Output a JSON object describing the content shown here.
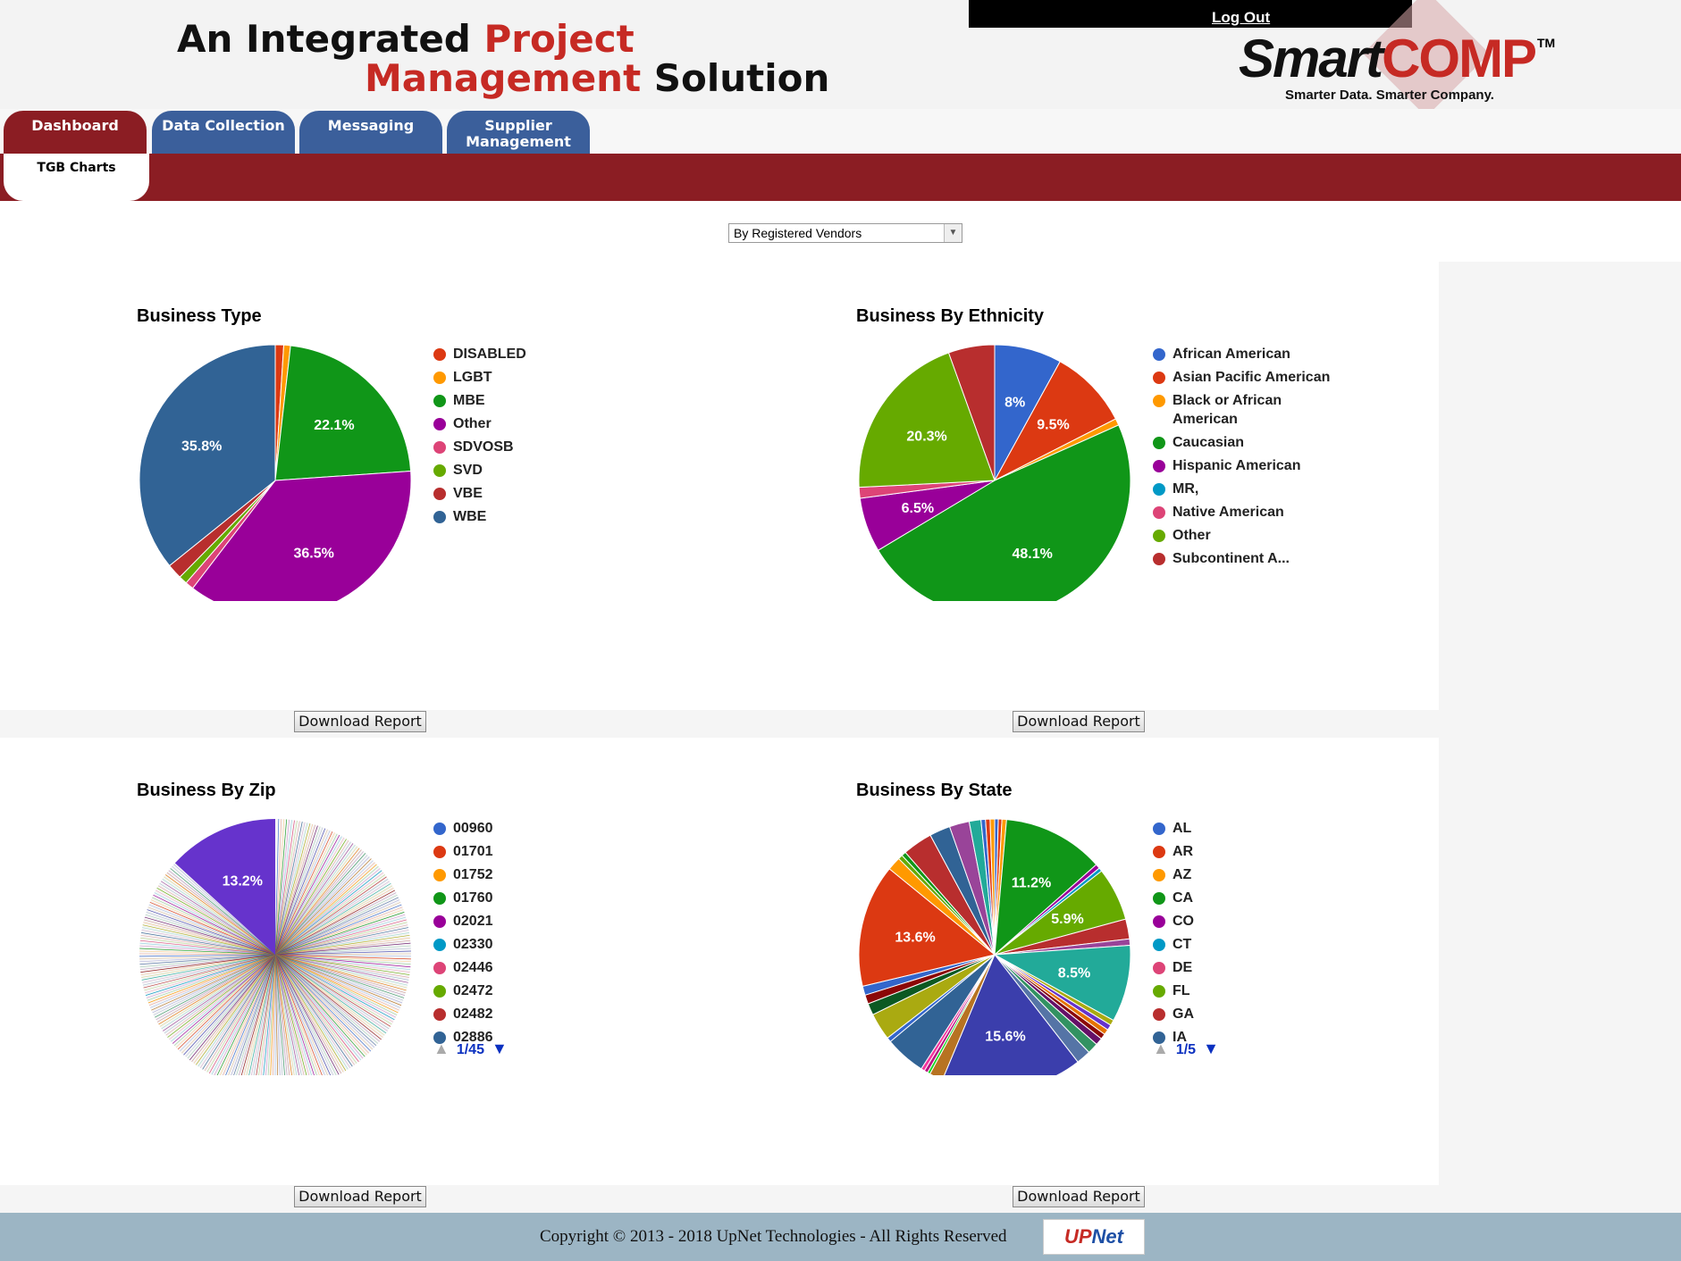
{
  "header": {
    "title_part1": "An Integrated ",
    "title_accent1": "Project",
    "title_accent2": "Management",
    "title_part2": " Solution",
    "logout": "Log Out",
    "logo_smart": "Smart",
    "logo_comp": "COMP",
    "logo_tm": "TM",
    "logo_tagline": "Smarter Data. Smarter Company."
  },
  "tabs": [
    {
      "label": "Dashboard",
      "active": true
    },
    {
      "label": "Data Collection",
      "active": false
    },
    {
      "label": "Messaging",
      "active": false
    },
    {
      "label": "Supplier Management",
      "active": false
    }
  ],
  "subtab": "TGB Charts",
  "filter": {
    "selected": "By Registered Vendors"
  },
  "download_label": "Download Report",
  "chart_data": [
    {
      "type": "pie",
      "title": "Business Type",
      "slices": [
        {
          "label": "DISABLED",
          "value": 1.0,
          "color": "#dc3912"
        },
        {
          "label": "LGBT",
          "value": 0.8,
          "color": "#ff9900"
        },
        {
          "label": "MBE",
          "value": 22.1,
          "color": "#109618"
        },
        {
          "label": "Other",
          "value": 36.5,
          "color": "#990099"
        },
        {
          "label": "SDVOSB",
          "value": 1.0,
          "color": "#dd4477"
        },
        {
          "label": "SVD",
          "value": 1.0,
          "color": "#66aa00"
        },
        {
          "label": "VBE",
          "value": 1.8,
          "color": "#b82e2e"
        },
        {
          "label": "WBE",
          "value": 35.8,
          "color": "#316395"
        }
      ],
      "data_labels": [
        "22.1%",
        "36.5%",
        "35.8%"
      ]
    },
    {
      "type": "pie",
      "title": "Business By Ethnicity",
      "slices": [
        {
          "label": "African American",
          "value": 8.0,
          "color": "#3366cc"
        },
        {
          "label": "Asian Pacific American",
          "value": 9.5,
          "color": "#dc3912"
        },
        {
          "label": "Black or African American",
          "value": 0.8,
          "color": "#ff9900"
        },
        {
          "label": "Caucasian",
          "value": 48.1,
          "color": "#109618"
        },
        {
          "label": "Hispanic American",
          "value": 6.5,
          "color": "#990099"
        },
        {
          "label": "MR,",
          "value": 0.0,
          "color": "#0099c6"
        },
        {
          "label": "Native American",
          "value": 1.3,
          "color": "#dd4477"
        },
        {
          "label": "Other",
          "value": 20.3,
          "color": "#66aa00"
        },
        {
          "label": "Subcontinent A...",
          "value": 5.5,
          "color": "#b82e2e"
        }
      ],
      "data_labels": [
        "8%",
        "9.5%",
        "48.1%",
        "6.5%",
        "20.3%"
      ]
    },
    {
      "type": "pie",
      "title": "Business By Zip",
      "largest_slice": {
        "label": "",
        "value": 13.2,
        "color": "#6633cc"
      },
      "legend": [
        {
          "label": "00960",
          "color": "#3366cc"
        },
        {
          "label": "01701",
          "color": "#dc3912"
        },
        {
          "label": "01752",
          "color": "#ff9900"
        },
        {
          "label": "01760",
          "color": "#109618"
        },
        {
          "label": "02021",
          "color": "#990099"
        },
        {
          "label": "02330",
          "color": "#0099c6"
        },
        {
          "label": "02446",
          "color": "#dd4477"
        },
        {
          "label": "02472",
          "color": "#66aa00"
        },
        {
          "label": "02482",
          "color": "#b82e2e"
        },
        {
          "label": "02886",
          "color": "#316395"
        }
      ],
      "data_labels": [
        "13.2%"
      ],
      "pager": "1/45"
    },
    {
      "type": "pie",
      "title": "Business By State",
      "slices": [
        {
          "label": "AL",
          "value": 0.4,
          "color": "#3366cc"
        },
        {
          "label": "AR",
          "value": 0.4,
          "color": "#dc3912"
        },
        {
          "label": "AZ",
          "value": 0.5,
          "color": "#ff9900"
        },
        {
          "label": "CA",
          "value": 11.2,
          "color": "#109618"
        },
        {
          "label": "CO",
          "value": 0.5,
          "color": "#990099"
        },
        {
          "label": "CT",
          "value": 0.4,
          "color": "#0099c6"
        },
        {
          "label": "FL",
          "value": 5.9,
          "color": "#66aa00"
        },
        {
          "label": "GA",
          "value": 2.2,
          "color": "#b82e2e"
        },
        {
          "label": "",
          "value": 0.7,
          "color": "#994499"
        },
        {
          "label": "",
          "value": 8.5,
          "color": "#22aa99"
        },
        {
          "label": "",
          "value": 0.6,
          "color": "#aaaa11"
        },
        {
          "label": "",
          "value": 0.6,
          "color": "#6633cc"
        },
        {
          "label": "",
          "value": 0.6,
          "color": "#e67300"
        },
        {
          "label": "",
          "value": 0.6,
          "color": "#8b0707"
        },
        {
          "label": "",
          "value": 0.8,
          "color": "#651067"
        },
        {
          "label": "",
          "value": 1.2,
          "color": "#329262"
        },
        {
          "label": "",
          "value": 1.6,
          "color": "#5574a6"
        },
        {
          "label": "",
          "value": 15.6,
          "color": "#3b3eac"
        },
        {
          "label": "",
          "value": 1.5,
          "color": "#b77322"
        },
        {
          "label": "",
          "value": 0.3,
          "color": "#16d620"
        },
        {
          "label": "",
          "value": 0.4,
          "color": "#b91383"
        },
        {
          "label": "",
          "value": 0.4,
          "color": "#f4359e"
        },
        {
          "label": "",
          "value": 4.5,
          "color": "#316395"
        },
        {
          "label": "",
          "value": 0.5,
          "color": "#3366cc"
        },
        {
          "label": "",
          "value": 3.0,
          "color": "#aaaa11"
        },
        {
          "label": "",
          "value": 1.3,
          "color": "#0c5922"
        },
        {
          "label": "",
          "value": 1.0,
          "color": "#8b0707"
        },
        {
          "label": "",
          "value": 1.0,
          "color": "#3366cc"
        },
        {
          "label": "",
          "value": 13.6,
          "color": "#dc3912"
        },
        {
          "label": "",
          "value": 1.5,
          "color": "#ff9900"
        },
        {
          "label": "",
          "value": 0.5,
          "color": "#66aa00"
        },
        {
          "label": "",
          "value": 0.5,
          "color": "#109618"
        },
        {
          "label": "",
          "value": 3.3,
          "color": "#b82e2e"
        },
        {
          "label": "",
          "value": 2.3,
          "color": "#316395"
        },
        {
          "label": "",
          "value": 2.2,
          "color": "#994499"
        },
        {
          "label": "",
          "value": 1.3,
          "color": "#22aa99"
        },
        {
          "label": "",
          "value": 0.5,
          "color": "#3366cc"
        },
        {
          "label": "",
          "value": 0.5,
          "color": "#dc3912"
        },
        {
          "label": "",
          "value": 0.5,
          "color": "#ff9900"
        }
      ],
      "legend": [
        {
          "label": "AL",
          "color": "#3366cc"
        },
        {
          "label": "AR",
          "color": "#dc3912"
        },
        {
          "label": "AZ",
          "color": "#ff9900"
        },
        {
          "label": "CA",
          "color": "#109618"
        },
        {
          "label": "CO",
          "color": "#990099"
        },
        {
          "label": "CT",
          "color": "#0099c6"
        },
        {
          "label": "DE",
          "color": "#dd4477"
        },
        {
          "label": "FL",
          "color": "#66aa00"
        },
        {
          "label": "GA",
          "color": "#b82e2e"
        },
        {
          "label": "IA",
          "color": "#316395"
        }
      ],
      "data_labels": [
        "11.2%",
        "5.9%",
        "8.5%",
        "15.6%",
        "13.6%"
      ],
      "pager": "1/5"
    }
  ],
  "footer": {
    "copyright": "Copyright © 2013 - 2018 UpNet Technologies - All Rights Reserved",
    "logo_up": "UP",
    "logo_net": "Net"
  }
}
